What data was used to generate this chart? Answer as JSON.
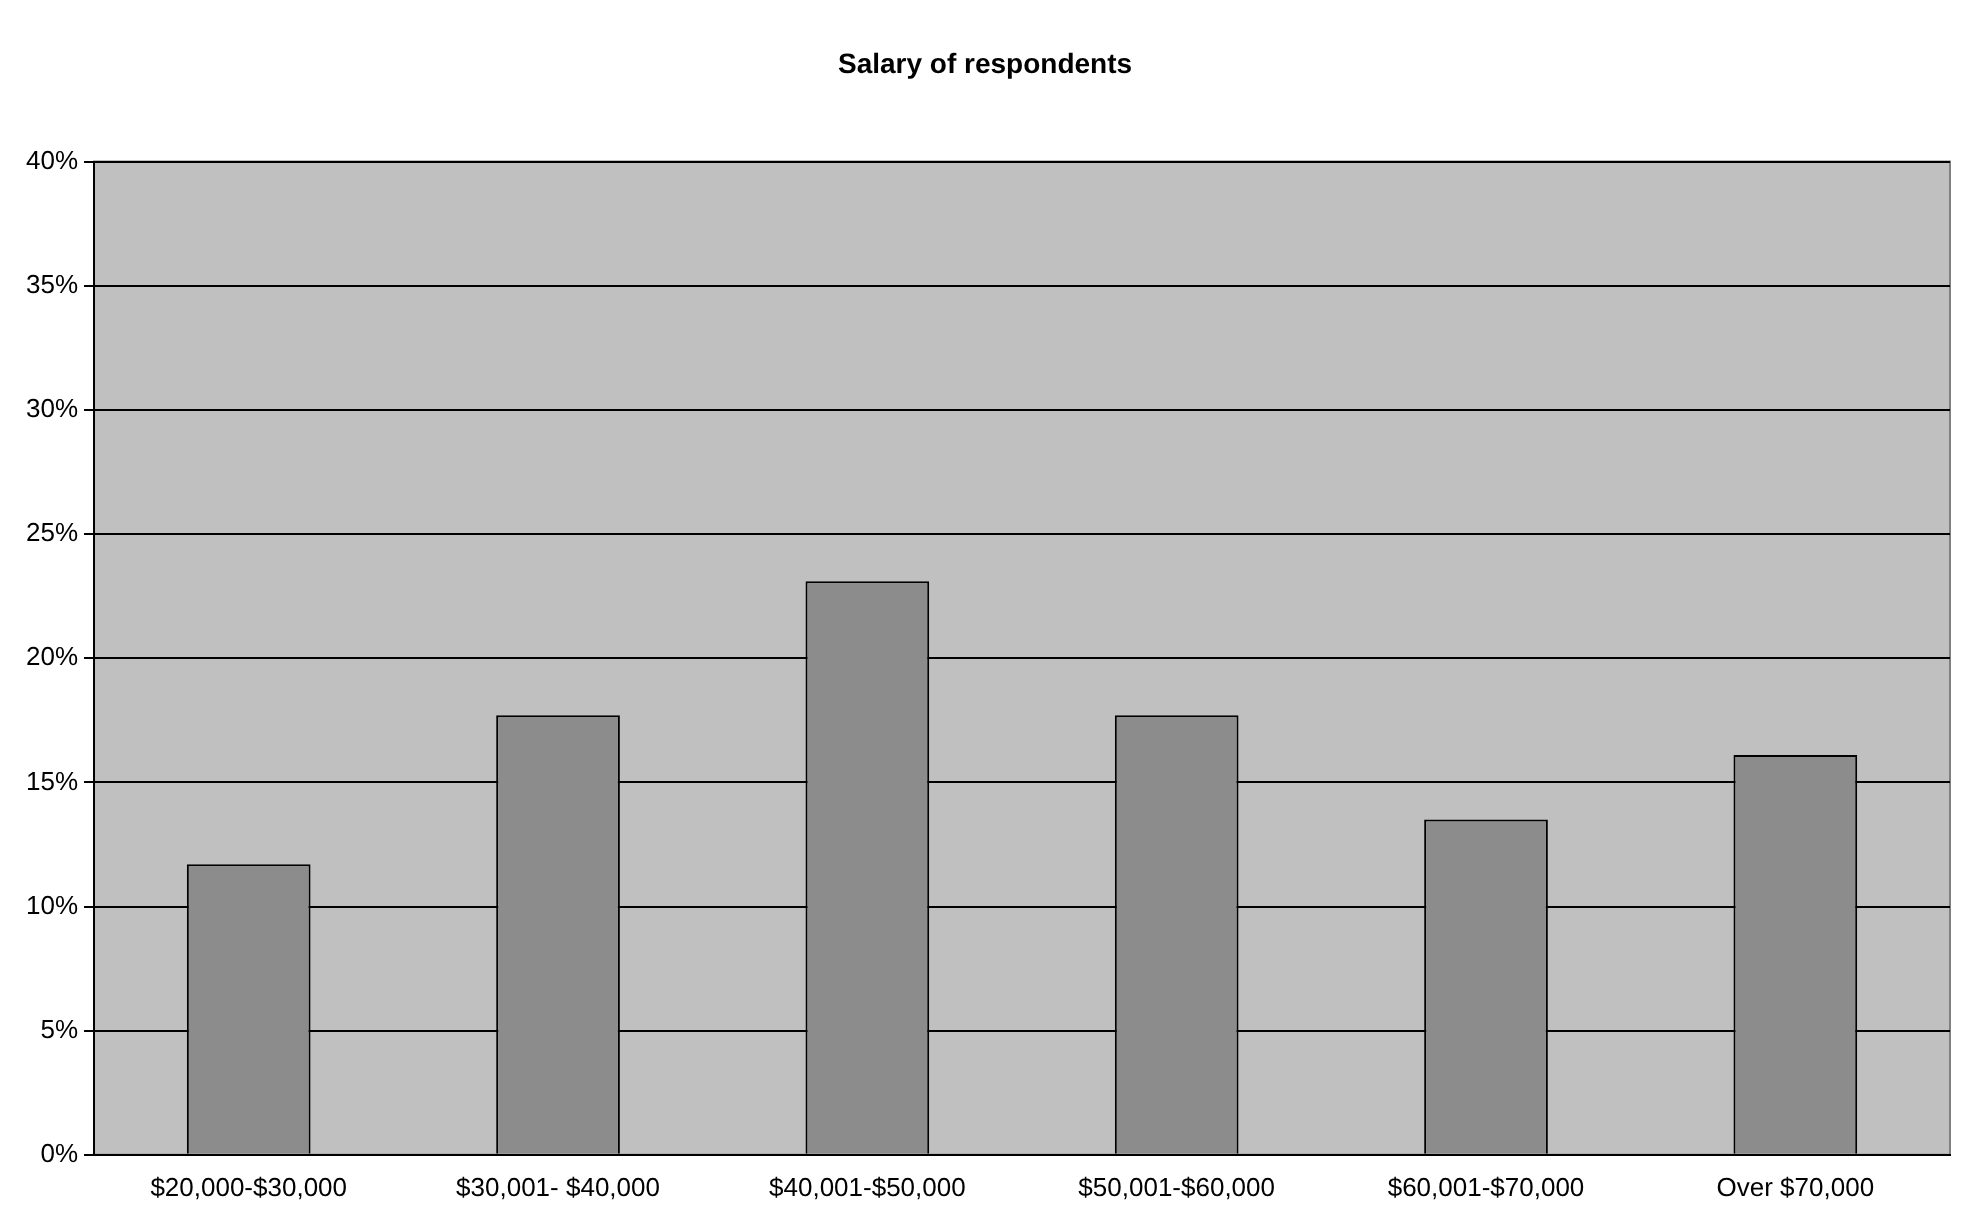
{
  "chart_data": {
    "type": "bar",
    "title": "Salary of respondents",
    "categories": [
      "$20,000-$30,000",
      "$30,001- $40,000",
      "$40,001-$50,000",
      "$50,001-$60,000",
      "$60,001-$70,000",
      "Over $70,000"
    ],
    "values": [
      11.7,
      17.7,
      23.1,
      17.7,
      13.5,
      16.1
    ],
    "color": "#8c8c8c",
    "ylim": [
      0,
      40
    ],
    "yticks": [
      {
        "value": 0,
        "label": "0%"
      },
      {
        "value": 5,
        "label": "5%"
      },
      {
        "value": 10,
        "label": "10%"
      },
      {
        "value": 15,
        "label": "15%"
      },
      {
        "value": 20,
        "label": "20%"
      },
      {
        "value": 25,
        "label": "25%"
      },
      {
        "value": 30,
        "label": "30%"
      },
      {
        "value": 35,
        "label": "35%"
      },
      {
        "value": 40,
        "label": "40%"
      }
    ],
    "grid": "y",
    "legend": false
  }
}
